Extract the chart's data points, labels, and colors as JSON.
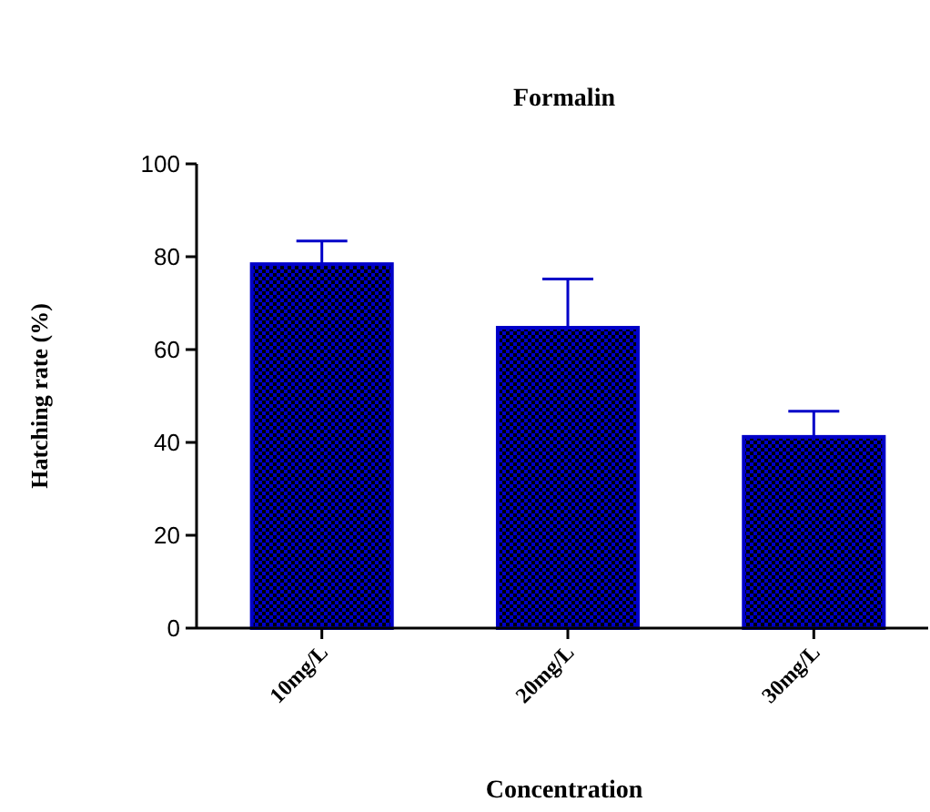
{
  "chart_data": {
    "type": "bar",
    "title": "Formalin",
    "xlabel": "Concentration",
    "ylabel": "Hatching rate (%)",
    "categories": [
      "10mg/L",
      "20mg/L",
      "30mg/L"
    ],
    "values": [
      78.4,
      64.7,
      41.2
    ],
    "errors": [
      5,
      10.5,
      5.5
    ],
    "color": "#0000c8",
    "ylim": [
      0,
      100
    ],
    "yticks": [
      0,
      20,
      40,
      60,
      80,
      100
    ],
    "grid": false
  }
}
